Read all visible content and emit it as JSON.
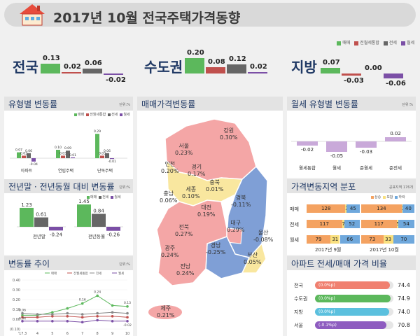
{
  "title": "2017년 10월 전국주택가격동향",
  "legend": [
    "매매",
    "전월세통합",
    "전세",
    "월세"
  ],
  "colors": {
    "sale": "#5cb85c",
    "integrated": "#c0504d",
    "jeonse": "#666666",
    "wolse": "#7b4fa6",
    "rise": "#f4a261",
    "flat": "#f9e07f",
    "fall": "#6fa8dc"
  },
  "summary": [
    {
      "label": "전국",
      "values": [
        0.13,
        0.02,
        0.06,
        -0.02
      ],
      "labels": [
        "0.13",
        "0.02",
        "0.06",
        "-0.02"
      ]
    },
    {
      "label": "수도권",
      "values": [
        0.2,
        0.08,
        0.12,
        0.02
      ],
      "labels": [
        "0.20",
        "0.08",
        "0.12",
        "0.02"
      ]
    },
    {
      "label": "지방",
      "values": [
        0.07,
        -0.03,
        0.0,
        -0.06
      ],
      "labels": [
        "0.07",
        "-0.03",
        "0.00",
        "-0.06"
      ]
    }
  ],
  "panels": {
    "type_change": {
      "title": "유형별 변동률",
      "unit": "단위:%"
    },
    "map": {
      "title": "매매가격변동률"
    },
    "wolse_type": {
      "title": "월세 유형별 변동률",
      "unit": "단위:%"
    },
    "yearend": {
      "title": "전년말 · 전년동월 대비 변동률",
      "unit": "단위:%"
    },
    "distribution": {
      "title": "가격변동지역 분포",
      "unit": "공표지역 176개"
    },
    "trend": {
      "title": "변동률 추이",
      "unit": "단위:%"
    },
    "apt_ratio": {
      "title": "아파트 전세/매매 가격 비율"
    }
  },
  "chart_data": [
    {
      "type": "bar",
      "title": "유형별 변동률",
      "categories": [
        "아파트",
        "연립주택",
        "단독주택"
      ],
      "series": [
        {
          "name": "매매",
          "values": [
            0.07,
            0.1,
            0.29
          ]
        },
        {
          "name": "전월세통합",
          "values": [
            0.03,
            0.03,
            0.03
          ]
        },
        {
          "name": "전세",
          "values": [
            0.06,
            0.09,
            0.06
          ]
        },
        {
          "name": "월세",
          "values": [
            -0.04,
            0.01,
            -0.01
          ]
        }
      ],
      "value_labels": [
        [
          "0.07",
          "0.03",
          "0.06",
          "-0.04"
        ],
        [
          "0.10",
          "0.03",
          "0.09",
          "0.01"
        ],
        [
          "0.29",
          "0.03",
          "0.06",
          "-0.01"
        ]
      ]
    },
    {
      "type": "bar",
      "title": "월세 유형별 변동률",
      "categories": [
        "월세통합",
        "월세",
        "준월세",
        "준전세"
      ],
      "values": [
        -0.02,
        -0.05,
        -0.03,
        0.02
      ],
      "labels": [
        "-0.02",
        "-0.05",
        "-0.03",
        "0.02"
      ]
    },
    {
      "type": "bar",
      "title": "전년말 · 전년동월 대비 변동률",
      "categories": [
        "전년말",
        "전년동월"
      ],
      "series": [
        {
          "name": "매매",
          "values": [
            1.23,
            1.45
          ]
        },
        {
          "name": "전세",
          "values": [
            0.61,
            0.84
          ]
        },
        {
          "name": "월세",
          "values": [
            -0.24,
            -0.26
          ]
        }
      ],
      "value_labels": [
        [
          "1.23",
          "0.61",
          "-0.24"
        ],
        [
          "1.45",
          "0.84",
          "-0.26"
        ]
      ]
    },
    {
      "type": "line",
      "title": "변동률 추이",
      "x": [
        "'17.3",
        "4",
        "5",
        "6",
        "7",
        "8",
        "9",
        "10"
      ],
      "ylim": [
        -0.1,
        0.4
      ],
      "yticks": [
        "0.40",
        "0.30",
        "0.20",
        "0.10",
        "0.00",
        "(0.10)"
      ],
      "series": [
        {
          "name": "매매",
          "values": [
            0.04,
            0.04,
            0.07,
            0.11,
            0.16,
            0.24,
            0.14,
            0.13
          ]
        },
        {
          "name": "전월세통합",
          "values": [
            0.02,
            0.02,
            0.03,
            0.03,
            0.02,
            0.03,
            0.03,
            0.02
          ]
        },
        {
          "name": "전세",
          "values": [
            0.06,
            0.05,
            0.05,
            0.06,
            0.05,
            0.06,
            0.07,
            0.06
          ]
        },
        {
          "name": "월세",
          "values": [
            -0.02,
            -0.02,
            -0.02,
            -0.02,
            -0.03,
            -0.01,
            -0.02,
            -0.02
          ]
        }
      ],
      "annotations": [
        "0.06",
        "0.04",
        "-0.02",
        "0.16",
        "0.24",
        "0.13",
        "0.06",
        "-0.03",
        "-0.01",
        "-0.02"
      ]
    }
  ],
  "map_regions": [
    {
      "name": "강원",
      "value": "0.30%"
    },
    {
      "name": "서울",
      "value": "0.23%"
    },
    {
      "name": "인천",
      "value": "0.20%"
    },
    {
      "name": "경기",
      "value": "0.17%"
    },
    {
      "name": "세종",
      "value": "0.10%"
    },
    {
      "name": "충북",
      "value": "0.01%"
    },
    {
      "name": "충남",
      "value": "0.06%"
    },
    {
      "name": "대전",
      "value": "0.19%"
    },
    {
      "name": "경북",
      "value": "-0.11%"
    },
    {
      "name": "대구",
      "value": "0.29%"
    },
    {
      "name": "전북",
      "value": "0.27%"
    },
    {
      "name": "울산",
      "value": "-0.08%"
    },
    {
      "name": "경남",
      "value": "-0.25%"
    },
    {
      "name": "광주",
      "value": "0.24%"
    },
    {
      "name": "부산",
      "value": "0.05%"
    },
    {
      "name": "전남",
      "value": "0.24%"
    },
    {
      "name": "제주",
      "value": "0.21%"
    }
  ],
  "distribution": {
    "legend": [
      "상승",
      "보합",
      "하락"
    ],
    "rows": [
      {
        "label": "매매",
        "sep": [
          128,
          3,
          45
        ],
        "oct": [
          134,
          2,
          40
        ]
      },
      {
        "label": "전세",
        "sep": [
          117,
          7,
          52
        ],
        "oct": [
          117,
          5,
          54
        ]
      },
      {
        "label": "월세",
        "sep": [
          79,
          31,
          66
        ],
        "oct": [
          73,
          33,
          70
        ]
      }
    ],
    "periods": [
      "2017년 9월",
      "2017년 10월"
    ]
  },
  "apt_ratio": [
    {
      "label": "전국",
      "change": "(0.0%p)",
      "value": "74.4",
      "pct": 74.4,
      "color": "#f08070"
    },
    {
      "label": "수도권",
      "change": "(0.0%p)",
      "value": "74.9",
      "pct": 74.9,
      "color": "#5cb85c"
    },
    {
      "label": "지방",
      "change": "(0.0%p)",
      "value": "74.0",
      "pct": 74.0,
      "color": "#5bc0de"
    },
    {
      "label": "서울",
      "change": "(-0.1%p)",
      "value": "70.8",
      "pct": 70.8,
      "color": "#8e5cc0"
    }
  ]
}
